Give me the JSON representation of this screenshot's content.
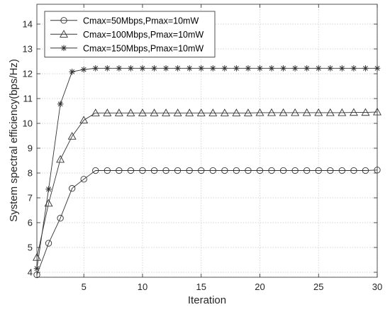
{
  "chart_data": {
    "type": "line",
    "title": "",
    "xlabel": "Iteration",
    "ylabel": "System spectral efficiency(bps/Hz)",
    "xlim": [
      1,
      30
    ],
    "ylim": [
      3.8,
      14.8
    ],
    "xticks": [
      5,
      10,
      15,
      20,
      25,
      30
    ],
    "yticks": [
      4,
      5,
      6,
      7,
      8,
      9,
      10,
      11,
      12,
      13,
      14
    ],
    "grid": true,
    "legend_position": "top-left",
    "x": [
      1,
      2,
      3,
      4,
      5,
      6,
      7,
      8,
      9,
      10,
      11,
      12,
      13,
      14,
      15,
      16,
      17,
      18,
      19,
      20,
      21,
      22,
      23,
      24,
      25,
      26,
      27,
      28,
      29,
      30
    ],
    "series": [
      {
        "name": "Cmax=50Mbps,Pmax=10mW",
        "marker": "circle",
        "color": "#333333",
        "values": [
          3.9,
          5.17,
          6.18,
          7.38,
          7.75,
          8.1,
          8.1,
          8.1,
          8.1,
          8.1,
          8.1,
          8.1,
          8.1,
          8.1,
          8.1,
          8.1,
          8.1,
          8.1,
          8.1,
          8.1,
          8.1,
          8.1,
          8.1,
          8.1,
          8.1,
          8.1,
          8.1,
          8.1,
          8.1,
          8.12
        ]
      },
      {
        "name": "Cmax=100Mbps,Pmax=10mW",
        "marker": "triangle",
        "color": "#333333",
        "values": [
          4.6,
          6.78,
          8.55,
          9.48,
          10.13,
          10.42,
          10.42,
          10.42,
          10.42,
          10.42,
          10.42,
          10.42,
          10.42,
          10.42,
          10.42,
          10.42,
          10.42,
          10.42,
          10.42,
          10.43,
          10.43,
          10.43,
          10.43,
          10.43,
          10.43,
          10.43,
          10.43,
          10.44,
          10.44,
          10.46
        ]
      },
      {
        "name": "Cmax=150Mbps,Pmax=10mW",
        "marker": "star",
        "color": "#333333",
        "values": [
          4.15,
          7.35,
          10.78,
          12.08,
          12.17,
          12.22,
          12.22,
          12.22,
          12.22,
          12.22,
          12.22,
          12.22,
          12.22,
          12.22,
          12.22,
          12.22,
          12.22,
          12.22,
          12.22,
          12.22,
          12.22,
          12.22,
          12.22,
          12.22,
          12.22,
          12.22,
          12.22,
          12.22,
          12.22,
          12.22
        ]
      }
    ]
  }
}
